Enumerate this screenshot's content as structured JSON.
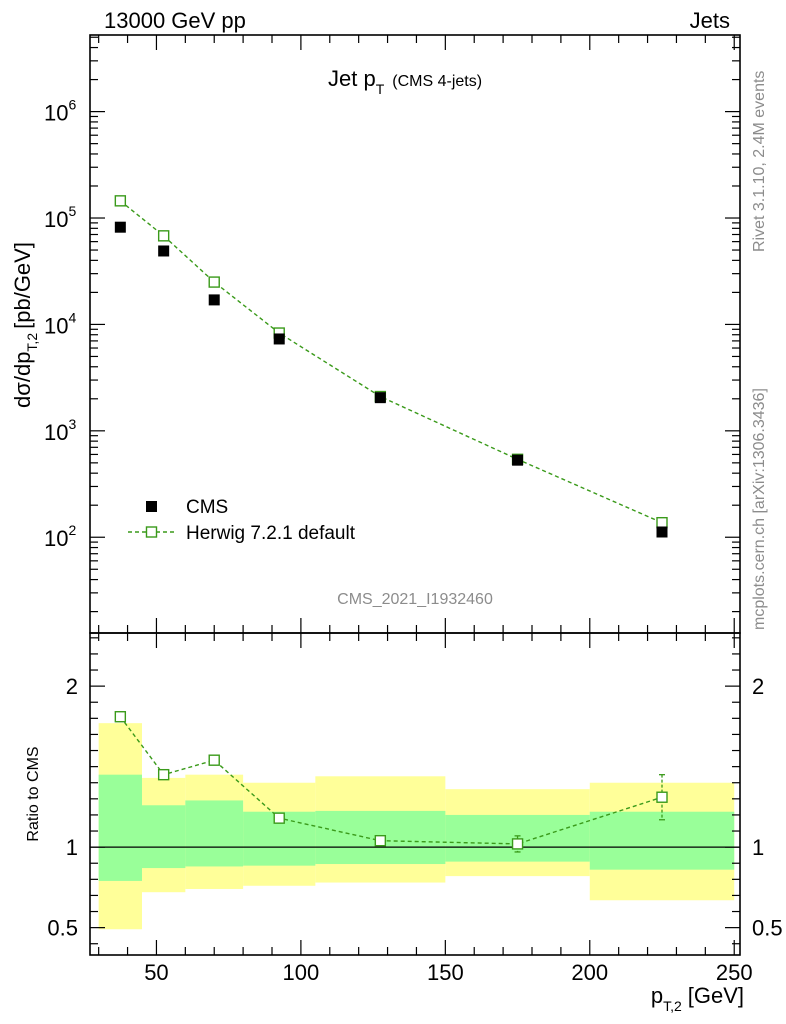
{
  "header": {
    "left": "13000 GeV pp",
    "right": "Jets"
  },
  "title": {
    "main": "Jet p",
    "sub": "T",
    "suffix": "(CMS 4-jets)"
  },
  "side_labels": {
    "rivet": "Rivet 3.1.10,  2.4M events",
    "mcplots": "mcplots.cern.ch [arXiv:1306.3436]"
  },
  "watermark": "CMS_2021_I1932460",
  "colors": {
    "mc": "#3a9a1a",
    "band_inner": "#99ff99",
    "band_outer": "#ffff99",
    "data": "#000000"
  },
  "chart_data": [
    {
      "type": "scatter",
      "name": "main",
      "xlim": [
        27,
        252
      ],
      "ylim_log10": [
        1.1,
        6.72
      ],
      "ylabel": {
        "main": "dσ/dp",
        "sub": "T,2",
        "unit": "[pb/GeV]"
      },
      "y_tick_labels": [
        {
          "base": "10",
          "exp": "2",
          "value": 100
        },
        {
          "base": "10",
          "exp": "3",
          "value": 1000
        },
        {
          "base": "10",
          "exp": "4",
          "value": 10000
        },
        {
          "base": "10",
          "exp": "5",
          "value": 100000
        },
        {
          "base": "10",
          "exp": "6",
          "value": 1000000
        }
      ],
      "series": [
        {
          "name": "CMS",
          "marker": "filled-square",
          "x": [
            37.5,
            52.5,
            70,
            92.5,
            127.5,
            175,
            225
          ],
          "y": [
            82000,
            49000,
            17000,
            7300,
            2050,
            530,
            112
          ]
        },
        {
          "name": "Herwig 7.2.1 default",
          "marker": "open-square-dashed-line",
          "x": [
            37.5,
            52.5,
            70,
            92.5,
            127.5,
            175,
            225
          ],
          "y": [
            145000,
            68000,
            25000,
            8300,
            2100,
            540,
            137
          ]
        }
      ]
    },
    {
      "type": "scatter",
      "name": "ratio",
      "xlim": [
        27,
        252
      ],
      "ylim": [
        0.33,
        2.33
      ],
      "ylabel": "Ratio to CMS",
      "y_tick_labels": [
        {
          "label": "0.5",
          "value": 0.5
        },
        {
          "label": "1",
          "value": 1
        },
        {
          "label": "2",
          "value": 2
        }
      ],
      "x_tick_labels": [
        {
          "label": "50",
          "value": 50
        },
        {
          "label": "100",
          "value": 100
        },
        {
          "label": "150",
          "value": 150
        },
        {
          "label": "200",
          "value": 200
        },
        {
          "label": "250",
          "value": 250
        }
      ],
      "xlabel": {
        "main": "p",
        "sub": "T,2",
        "unit": "[GeV]"
      },
      "bins": [
        {
          "lo": 30,
          "hi": 45,
          "inner": [
            0.79,
            1.45
          ],
          "outer": [
            0.49,
            1.77
          ]
        },
        {
          "lo": 45,
          "hi": 60,
          "inner": [
            0.87,
            1.26
          ],
          "outer": [
            0.72,
            1.43
          ]
        },
        {
          "lo": 60,
          "hi": 80,
          "inner": [
            0.88,
            1.29
          ],
          "outer": [
            0.74,
            1.45
          ]
        },
        {
          "lo": 80,
          "hi": 105,
          "inner": [
            0.885,
            1.22
          ],
          "outer": [
            0.76,
            1.4
          ]
        },
        {
          "lo": 105,
          "hi": 150,
          "inner": [
            0.895,
            1.225
          ],
          "outer": [
            0.78,
            1.44
          ]
        },
        {
          "lo": 150,
          "hi": 200,
          "inner": [
            0.91,
            1.2
          ],
          "outer": [
            0.82,
            1.36
          ]
        },
        {
          "lo": 200,
          "hi": 250,
          "inner": [
            0.86,
            1.22
          ],
          "outer": [
            0.67,
            1.4
          ]
        }
      ],
      "series": [
        {
          "name": "Herwig 7.2.1 default",
          "x": [
            37.5,
            52.5,
            70,
            92.5,
            127.5,
            175,
            225
          ],
          "y": [
            1.81,
            1.45,
            1.54,
            1.18,
            1.04,
            1.02,
            1.31
          ],
          "err": [
            0,
            0,
            0,
            0,
            0,
            0.05,
            0.14
          ]
        }
      ]
    }
  ]
}
